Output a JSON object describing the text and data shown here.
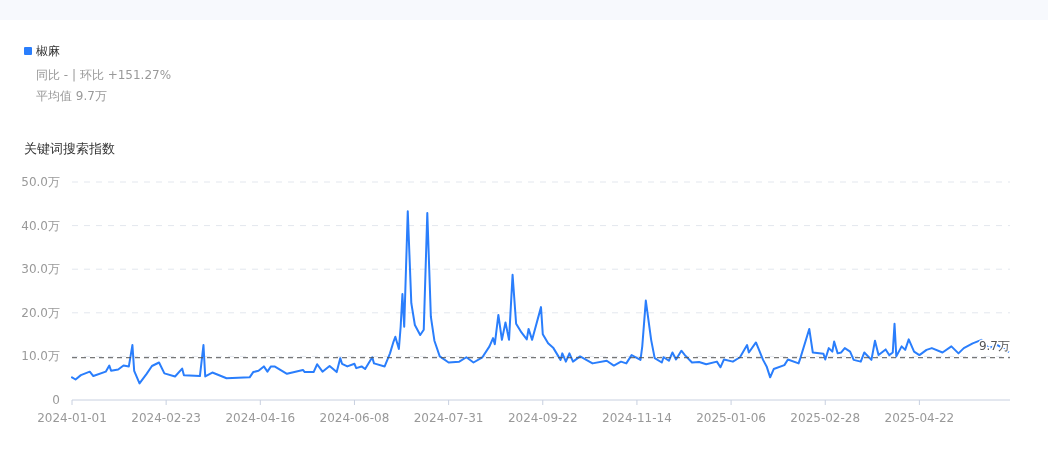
{
  "chart_data": {
    "type": "line",
    "ylabel": "关键词搜索指数",
    "annotations": [
      "同比 - | 环比 +151.27%",
      "平均值 9.7万"
    ],
    "legend": "top left",
    "grid": "y",
    "marker": "none",
    "xlim": [
      "2024-01-01",
      "2025-06-12"
    ],
    "xticks": [
      "2024-01-01",
      "2024-02-23",
      "2024-04-16",
      "2024-06-08",
      "2024-07-31",
      "2024-09-22",
      "2024-11-14",
      "2025-01-06",
      "2025-02-28",
      "2025-04-22"
    ],
    "ylim": [
      0,
      50
    ],
    "yticks": [
      0,
      {
        "value": 10,
        "label": "10.0万"
      },
      {
        "value": 20,
        "label": "20.0万"
      },
      {
        "value": 30,
        "label": "30.0万"
      },
      {
        "value": 40,
        "label": "40.0万"
      },
      {
        "value": 50,
        "label": "50.0万"
      }
    ],
    "ref_lines": [
      {
        "axis": "y",
        "value": 9.7,
        "label": "9.7万",
        "color": "#555555",
        "line_style": "dashed"
      }
    ],
    "series": [
      {
        "name": "椒麻",
        "color": "#2a7efc",
        "x": [
          "2024-01-01",
          "2024-01-03",
          "2024-01-06",
          "2024-01-11",
          "2024-01-13",
          "2024-01-20",
          "2024-01-22",
          "2024-01-23",
          "2024-01-27",
          "2024-01-30",
          "2024-02-02",
          "2024-02-04",
          "2024-02-05",
          "2024-02-08",
          "2024-02-12",
          "2024-02-15",
          "2024-02-19",
          "2024-02-22",
          "2024-02-28",
          "2024-03-03",
          "2024-03-04",
          "2024-03-13",
          "2024-03-15",
          "2024-03-16",
          "2024-03-20",
          "2024-03-28",
          "2024-04-10",
          "2024-04-12",
          "2024-04-15",
          "2024-04-18",
          "2024-04-20",
          "2024-04-22",
          "2024-04-24",
          "2024-05-01",
          "2024-05-10",
          "2024-05-11",
          "2024-05-16",
          "2024-05-18",
          "2024-05-21",
          "2024-05-25",
          "2024-05-29",
          "2024-05-31",
          "2024-06-01",
          "2024-06-04",
          "2024-06-08",
          "2024-06-09",
          "2024-06-12",
          "2024-06-14",
          "2024-06-18",
          "2024-06-19",
          "2024-06-25",
          "2024-06-28",
          "2024-06-30",
          "2024-07-01",
          "2024-07-03",
          "2024-07-04",
          "2024-07-05",
          "2024-07-06",
          "2024-07-08",
          "2024-07-10",
          "2024-07-12",
          "2024-07-15",
          "2024-07-17",
          "2024-07-19",
          "2024-07-21",
          "2024-07-23",
          "2024-07-26",
          "2024-07-31",
          "2024-08-06",
          "2024-08-10",
          "2024-08-14",
          "2024-08-19",
          "2024-08-23",
          "2024-08-25",
          "2024-08-26",
          "2024-08-28",
          "2024-08-30",
          "2024-09-01",
          "2024-09-03",
          "2024-09-05",
          "2024-09-07",
          "2024-09-10",
          "2024-09-13",
          "2024-09-14",
          "2024-09-16",
          "2024-09-21",
          "2024-09-22",
          "2024-09-25",
          "2024-09-28",
          "2024-10-02",
          "2024-10-03",
          "2024-10-05",
          "2024-10-07",
          "2024-10-09",
          "2024-10-13",
          "2024-10-20",
          "2024-10-28",
          "2024-11-01",
          "2024-11-05",
          "2024-11-08",
          "2024-11-11",
          "2024-11-16",
          "2024-11-17",
          "2024-11-19",
          "2024-11-22",
          "2024-11-24",
          "2024-11-28",
          "2024-11-29",
          "2024-12-02",
          "2024-12-04",
          "2024-12-06",
          "2024-12-09",
          "2024-12-11",
          "2024-12-15",
          "2024-12-19",
          "2024-12-23",
          "2024-12-29",
          "2024-12-31",
          "2025-01-02",
          "2025-01-07",
          "2025-01-11",
          "2025-01-15",
          "2025-01-16",
          "2025-01-20",
          "2025-01-24",
          "2025-01-26",
          "2025-01-28",
          "2025-01-30",
          "2025-02-05",
          "2025-02-07",
          "2025-02-13",
          "2025-02-14",
          "2025-02-19",
          "2025-02-21",
          "2025-02-27",
          "2025-02-28",
          "2025-03-02",
          "2025-03-04",
          "2025-03-05",
          "2025-03-07",
          "2025-03-09",
          "2025-03-11",
          "2025-03-14",
          "2025-03-16",
          "2025-03-20",
          "2025-03-22",
          "2025-03-26",
          "2025-03-28",
          "2025-03-30",
          "2025-04-03",
          "2025-04-05",
          "2025-04-07",
          "2025-04-08",
          "2025-04-09",
          "2025-04-12",
          "2025-04-14",
          "2025-04-16",
          "2025-04-19",
          "2025-04-22",
          "2025-04-26",
          "2025-04-29",
          "2025-05-05",
          "2025-05-10",
          "2025-05-14",
          "2025-05-17",
          "2025-05-22",
          "2025-05-27",
          "2025-05-31",
          "2025-06-05",
          "2025-06-11"
        ],
        "values": [
          5.2,
          4.7,
          5.7,
          6.5,
          5.5,
          6.5,
          7.9,
          6.7,
          7.0,
          7.9,
          7.7,
          12.6,
          6.7,
          3.8,
          6.0,
          7.8,
          8.6,
          6.1,
          5.4,
          7.2,
          5.7,
          5.5,
          12.6,
          5.4,
          6.3,
          5.0,
          5.2,
          6.4,
          6.7,
          7.7,
          6.5,
          7.7,
          7.7,
          6.0,
          6.9,
          6.4,
          6.4,
          8.2,
          6.5,
          7.8,
          6.4,
          9.6,
          8.3,
          7.7,
          8.3,
          7.3,
          7.7,
          7.1,
          9.8,
          8.4,
          7.7,
          10.7,
          13.4,
          14.5,
          11.7,
          16.8,
          24.3,
          16.8,
          43.3,
          22.2,
          17.2,
          14.9,
          16.1,
          42.9,
          19.1,
          13.6,
          10.0,
          8.6,
          8.8,
          9.8,
          8.6,
          9.8,
          12.3,
          14.2,
          12.8,
          19.5,
          13.8,
          17.8,
          13.8,
          28.7,
          17.5,
          15.5,
          13.9,
          16.3,
          13.8,
          21.3,
          15.1,
          13.0,
          11.9,
          9.2,
          10.7,
          8.8,
          10.7,
          8.8,
          10.0,
          8.4,
          9.0,
          7.9,
          8.8,
          8.4,
          10.3,
          9.2,
          12.3,
          22.8,
          13.8,
          9.6,
          8.6,
          9.8,
          9.0,
          10.9,
          9.3,
          11.3,
          10.3,
          8.6,
          8.7,
          8.2,
          8.8,
          7.5,
          9.3,
          8.8,
          9.8,
          12.6,
          10.9,
          13.2,
          9.2,
          7.7,
          5.2,
          7.1,
          8.0,
          9.3,
          8.4,
          9.6,
          16.3,
          10.9,
          10.6,
          9.3,
          11.9,
          11.1,
          13.4,
          10.7,
          10.9,
          11.9,
          11.1,
          9.2,
          8.8,
          10.9,
          9.2,
          13.6,
          10.3,
          11.6,
          10.3,
          10.9,
          17.5,
          10.0,
          12.3,
          11.5,
          13.9,
          11.1,
          10.3,
          11.5,
          11.9,
          10.9,
          12.3,
          10.7,
          11.9,
          13.0,
          13.8,
          11.9,
          12.6,
          11.1
        ]
      }
    ]
  }
}
